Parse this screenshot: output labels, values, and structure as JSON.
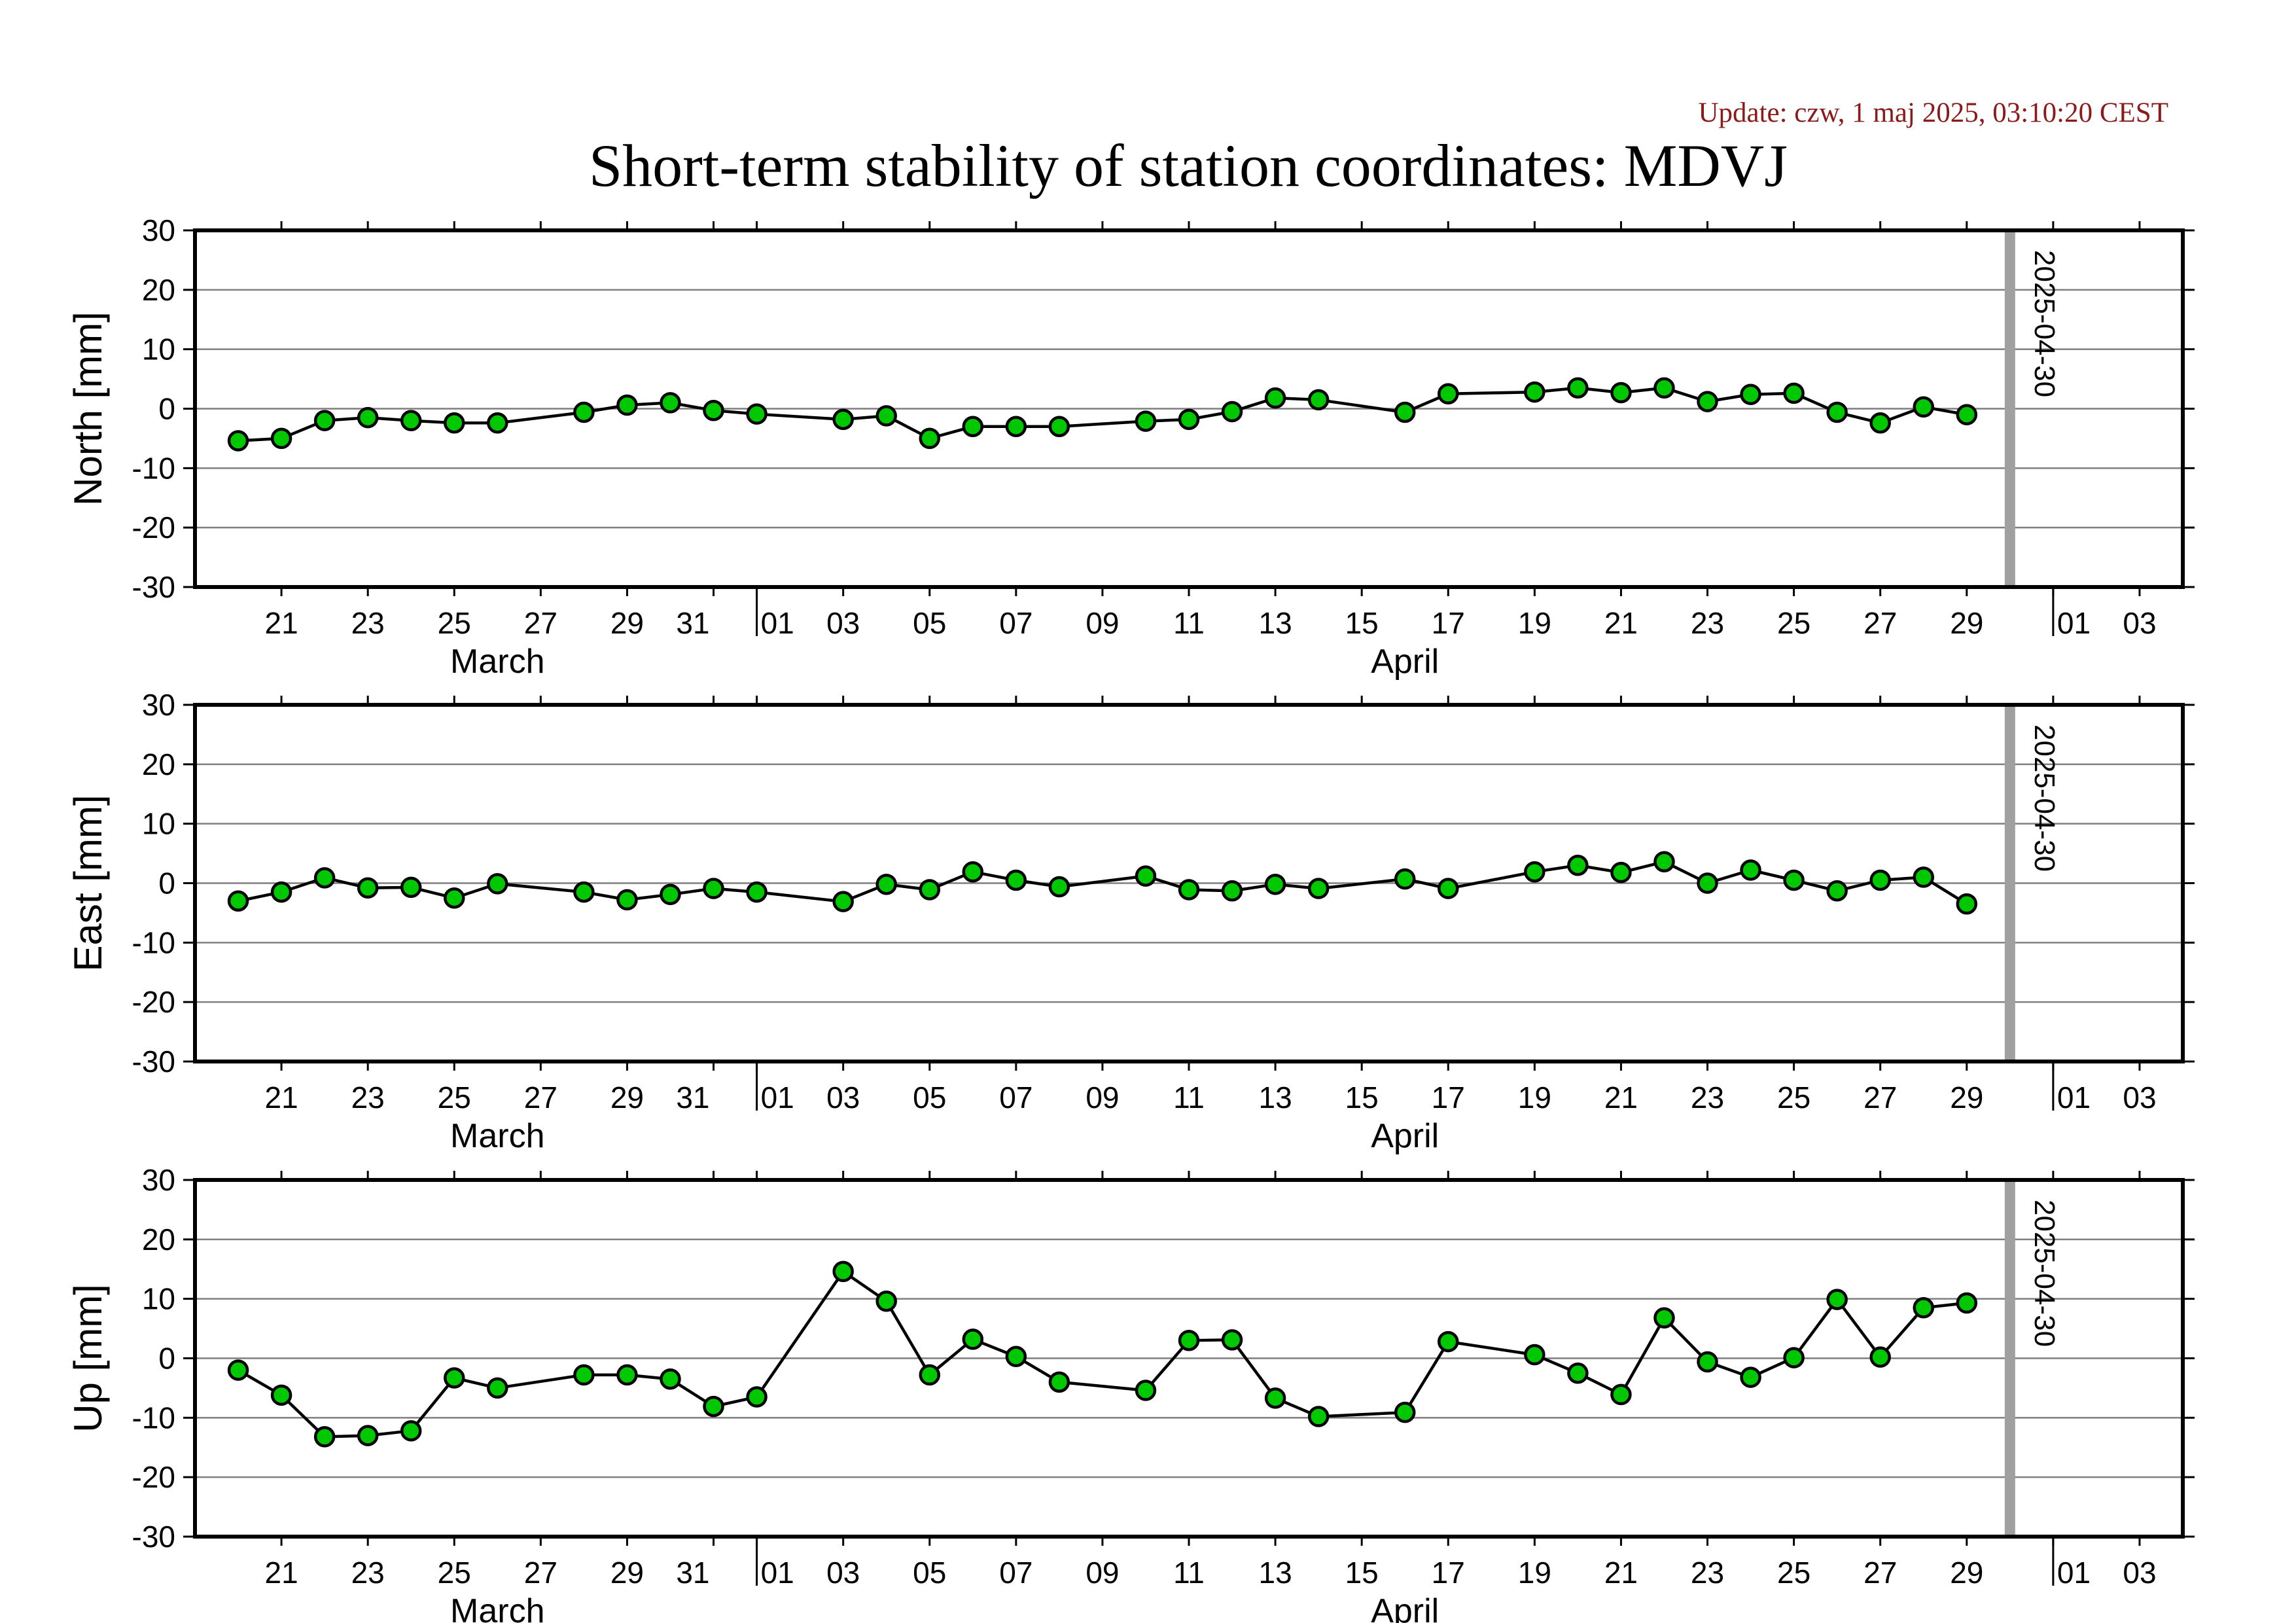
{
  "header": {
    "update": "Update: czw, 1 maj 2025, 03:10:20 CEST",
    "title": "Short-term stability of station coordinates: MDVJ"
  },
  "chart_data": {
    "type": "line",
    "x_axis": {
      "start": "2025-03-19",
      "end": "2025-05-04",
      "tick_labels": [
        "21",
        "23",
        "25",
        "27",
        "29",
        "31",
        "01",
        "03",
        "05",
        "07",
        "09",
        "11",
        "13",
        "15",
        "17",
        "19",
        "21",
        "23",
        "25",
        "27",
        "29",
        "01",
        "03"
      ],
      "month_labels": [
        "March",
        "April"
      ]
    },
    "marker": "2025-04-30",
    "colors": {
      "marker_line": "#a0a0a0",
      "point_fill": "#00c800",
      "line": "#000000"
    },
    "grid": true,
    "panels": [
      {
        "ylabel": "North [mm]",
        "ylim": [
          -30,
          30
        ],
        "yticks": [
          30,
          20,
          10,
          0,
          -10,
          -20,
          -30
        ],
        "points": [
          [
            "2025-03-20",
            -5.4
          ],
          [
            "2025-03-21",
            -5.0
          ],
          [
            "2025-03-22",
            -2.0
          ],
          [
            "2025-03-23",
            -1.5
          ],
          [
            "2025-03-24",
            -2.0
          ],
          [
            "2025-03-25",
            -2.4
          ],
          [
            "2025-03-26",
            -2.4
          ],
          [
            "2025-03-28",
            -0.6
          ],
          [
            "2025-03-29",
            0.6
          ],
          [
            "2025-03-30",
            1.0
          ],
          [
            "2025-03-31",
            -0.3
          ],
          [
            "2025-04-01",
            -0.9
          ],
          [
            "2025-04-03",
            -1.8
          ],
          [
            "2025-04-04",
            -1.2
          ],
          [
            "2025-04-05",
            -5.0
          ],
          [
            "2025-04-06",
            -3.0
          ],
          [
            "2025-04-07",
            -3.0
          ],
          [
            "2025-04-08",
            -3.0
          ],
          [
            "2025-04-10",
            -2.1
          ],
          [
            "2025-04-11",
            -1.8
          ],
          [
            "2025-04-12",
            -0.5
          ],
          [
            "2025-04-13",
            1.8
          ],
          [
            "2025-04-14",
            1.5
          ],
          [
            "2025-04-16",
            -0.6
          ],
          [
            "2025-04-17",
            2.5
          ],
          [
            "2025-04-19",
            2.8
          ],
          [
            "2025-04-20",
            3.5
          ],
          [
            "2025-04-21",
            2.7
          ],
          [
            "2025-04-22",
            3.5
          ],
          [
            "2025-04-23",
            1.2
          ],
          [
            "2025-04-24",
            2.4
          ],
          [
            "2025-04-25",
            2.6
          ],
          [
            "2025-04-26",
            -0.6
          ],
          [
            "2025-04-27",
            -2.4
          ],
          [
            "2025-04-28",
            0.3
          ],
          [
            "2025-04-29",
            -1.0
          ]
        ]
      },
      {
        "ylabel": "East [mm]",
        "ylim": [
          -30,
          30
        ],
        "yticks": [
          30,
          20,
          10,
          0,
          -10,
          -20,
          -30
        ],
        "points": [
          [
            "2025-03-20",
            -3.0
          ],
          [
            "2025-03-21",
            -1.5
          ],
          [
            "2025-03-22",
            0.9
          ],
          [
            "2025-03-23",
            -0.8
          ],
          [
            "2025-03-24",
            -0.7
          ],
          [
            "2025-03-25",
            -2.5
          ],
          [
            "2025-03-26",
            -0.1
          ],
          [
            "2025-03-28",
            -1.5
          ],
          [
            "2025-03-29",
            -2.8
          ],
          [
            "2025-03-30",
            -1.9
          ],
          [
            "2025-03-31",
            -0.9
          ],
          [
            "2025-04-01",
            -1.5
          ],
          [
            "2025-04-03",
            -3.1
          ],
          [
            "2025-04-04",
            -0.2
          ],
          [
            "2025-04-05",
            -1.1
          ],
          [
            "2025-04-06",
            1.9
          ],
          [
            "2025-04-07",
            0.5
          ],
          [
            "2025-04-08",
            -0.6
          ],
          [
            "2025-04-10",
            1.2
          ],
          [
            "2025-04-11",
            -1.1
          ],
          [
            "2025-04-12",
            -1.3
          ],
          [
            "2025-04-13",
            -0.2
          ],
          [
            "2025-04-14",
            -0.9
          ],
          [
            "2025-04-16",
            0.7
          ],
          [
            "2025-04-17",
            -0.9
          ],
          [
            "2025-04-19",
            1.9
          ],
          [
            "2025-04-20",
            3.0
          ],
          [
            "2025-04-21",
            1.8
          ],
          [
            "2025-04-22",
            3.6
          ],
          [
            "2025-04-23",
            0.0
          ],
          [
            "2025-04-24",
            2.2
          ],
          [
            "2025-04-25",
            0.5
          ],
          [
            "2025-04-26",
            -1.3
          ],
          [
            "2025-04-27",
            0.5
          ],
          [
            "2025-04-28",
            1.0
          ],
          [
            "2025-04-29",
            -3.5
          ]
        ]
      },
      {
        "ylabel": "Up [mm]",
        "ylim": [
          -30,
          30
        ],
        "yticks": [
          30,
          20,
          10,
          0,
          -10,
          -20,
          -30
        ],
        "points": [
          [
            "2025-03-20",
            -2.0
          ],
          [
            "2025-03-21",
            -6.2
          ],
          [
            "2025-03-22",
            -13.2
          ],
          [
            "2025-03-23",
            -13.0
          ],
          [
            "2025-03-24",
            -12.2
          ],
          [
            "2025-03-25",
            -3.3
          ],
          [
            "2025-03-26",
            -5.0
          ],
          [
            "2025-03-28",
            -2.8
          ],
          [
            "2025-03-29",
            -2.8
          ],
          [
            "2025-03-30",
            -3.5
          ],
          [
            "2025-03-31",
            -8.1
          ],
          [
            "2025-04-01",
            -6.5
          ],
          [
            "2025-04-03",
            14.6
          ],
          [
            "2025-04-04",
            9.6
          ],
          [
            "2025-04-05",
            -2.8
          ],
          [
            "2025-04-06",
            3.2
          ],
          [
            "2025-04-07",
            0.3
          ],
          [
            "2025-04-08",
            -4.0
          ],
          [
            "2025-04-10",
            -5.4
          ],
          [
            "2025-04-11",
            3.0
          ],
          [
            "2025-04-12",
            3.1
          ],
          [
            "2025-04-13",
            -6.7
          ],
          [
            "2025-04-14",
            -9.8
          ],
          [
            "2025-04-16",
            -9.1
          ],
          [
            "2025-04-17",
            2.8
          ],
          [
            "2025-04-19",
            0.6
          ],
          [
            "2025-04-20",
            -2.5
          ],
          [
            "2025-04-21",
            -6.1
          ],
          [
            "2025-04-22",
            6.8
          ],
          [
            "2025-04-23",
            -0.6
          ],
          [
            "2025-04-24",
            -3.2
          ],
          [
            "2025-04-25",
            0.1
          ],
          [
            "2025-04-26",
            9.9
          ],
          [
            "2025-04-27",
            0.2
          ],
          [
            "2025-04-28",
            8.5
          ],
          [
            "2025-04-29",
            9.3
          ]
        ]
      }
    ]
  }
}
